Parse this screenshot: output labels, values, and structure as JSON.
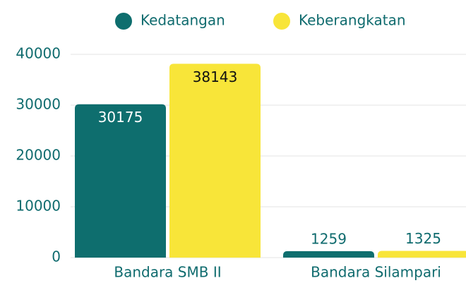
{
  "chart_data": {
    "type": "bar",
    "categories": [
      "Bandara SMB II",
      "Bandara Silampari"
    ],
    "series": [
      {
        "name": "Kedatangan",
        "color": "#0e6e6e",
        "values": [
          30175,
          1259
        ]
      },
      {
        "name": "Keberangkatan",
        "color": "#f8e539",
        "values": [
          38143,
          1325
        ]
      }
    ],
    "ylim": [
      0,
      40000
    ],
    "yticks": [
      0,
      10000,
      20000,
      30000,
      40000
    ],
    "grid": true,
    "legend": "top"
  }
}
